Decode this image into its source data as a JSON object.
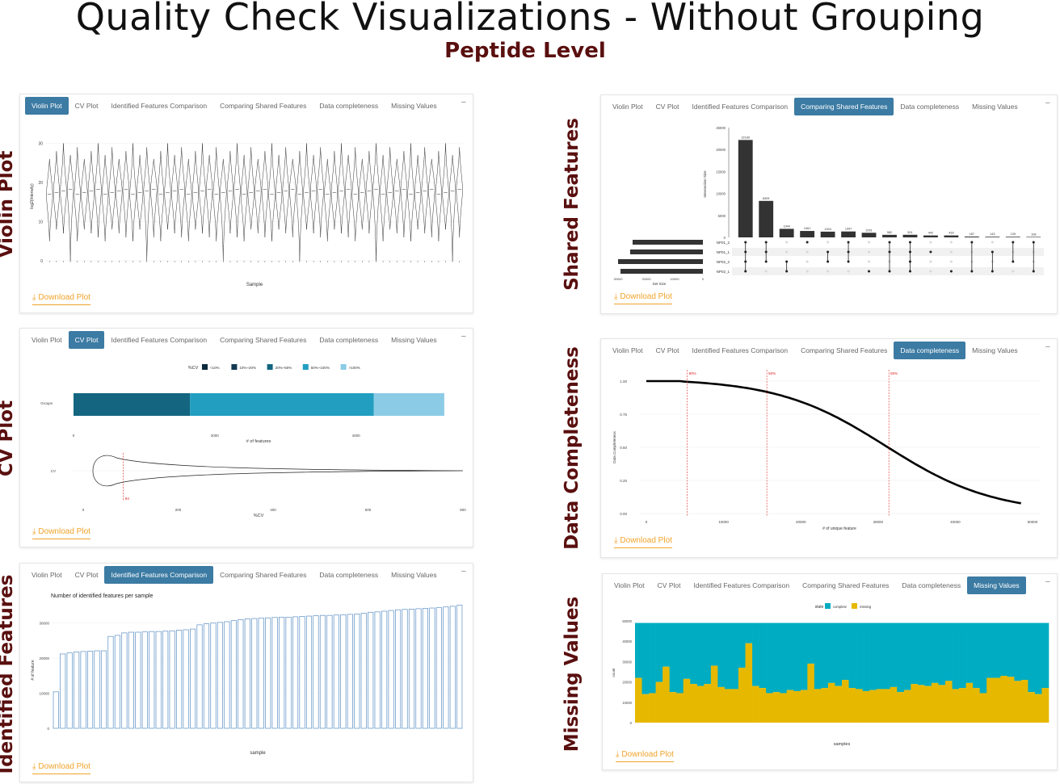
{
  "header": {
    "title": "Quality Check Visualizations - Without Grouping",
    "subtitle": "Peptide Level"
  },
  "side_labels": {
    "violin": "Violin Plot",
    "cv": "CV Plot",
    "identified": "Identified Features",
    "shared": "Shared Features",
    "completeness": "Data Completeness",
    "missing": "Missing Values"
  },
  "tabs": [
    "Violin Plot",
    "CV Plot",
    "Identified Features Comparison",
    "Comparing Shared Features",
    "Data completeness",
    "Missing Values"
  ],
  "collapse_glyph": "−",
  "download_label": "Download Plot",
  "download_icon": "download-icon",
  "colors": {
    "accent": "#3c7ba3",
    "download": "#f0a32a",
    "side_label": "#5a0f0f",
    "cv_bins": [
      "#0b2a3d",
      "#11384f",
      "#136580",
      "#219ec0",
      "#8ccbe6"
    ],
    "complete": "#00acc1",
    "missing": "#e6b800"
  },
  "violin": {
    "ylabel": "log2(Intensity)",
    "xlabel": "Sample",
    "yticks": [
      "0",
      "10",
      "20",
      "30"
    ],
    "sample_count": 60
  },
  "cv_plot": {
    "legend_title": "%CV",
    "legend_items": [
      "<10%",
      "10%~20%",
      "20%~50%",
      "50%~100%",
      ">100%"
    ],
    "bar_label": "Groups",
    "bar_segments": [
      {
        "label": "20%~50%",
        "value": 1650
      },
      {
        "label": "50%~100%",
        "value": 4250
      },
      {
        "label": ">100%",
        "value": 5250
      }
    ],
    "bar_xticks": [
      "0",
      "2000",
      "4000"
    ],
    "bar_xlabel": "# of features",
    "violin_label": "CV",
    "violin_xticks": [
      "0",
      "200",
      "400",
      "600",
      "800"
    ],
    "violin_xlabel": "%CV",
    "median_label": "84",
    "median_value": 84
  },
  "identified": {
    "title": "Number of identified features per sample",
    "ylabel": "# of feature",
    "xlabel": "sample",
    "yticks": [
      "0",
      "10000",
      "20000",
      "30000"
    ],
    "ymax": 35000,
    "values": [
      10400,
      21200,
      21500,
      21800,
      21900,
      22000,
      22100,
      22100,
      26200,
      26500,
      27200,
      27400,
      27400,
      27500,
      27600,
      27600,
      27700,
      27800,
      28000,
      28100,
      28300,
      29500,
      29800,
      30000,
      30200,
      30400,
      30700,
      31000,
      31200,
      31300,
      31400,
      31500,
      31600,
      31700,
      31700,
      31800,
      31900,
      32000,
      32100,
      32200,
      32200,
      32300,
      32400,
      32500,
      32600,
      32800,
      33100,
      33200,
      33400,
      33600,
      33800,
      33900,
      34000,
      34100,
      34200,
      34300,
      34400,
      34600,
      34800,
      35100
    ]
  },
  "shared": {
    "ylabel": "Intersection Size",
    "yticks": [
      "0",
      "5000",
      "10000",
      "15000",
      "20000",
      "25000"
    ],
    "ymax": 25000,
    "bars": [
      22180,
      8309,
      1944,
      1461,
      1304,
      1347,
      1051,
      582,
      591,
      442,
      439,
      187,
      143,
      139,
      108
    ],
    "bar_labels": [
      "22180",
      "8309",
      "1944",
      "1461",
      "1304",
      "1347",
      "1051",
      "582",
      "591",
      "442",
      "439",
      "187",
      "143",
      "139",
      "108"
    ],
    "sets": [
      "NP01_2",
      "NP01_1",
      "NP02_2",
      "NP02_1"
    ],
    "set_sizes": [
      29000,
      30000,
      35000,
      34000
    ],
    "set_xlabel": "Set Size",
    "set_xticks": [
      "30000",
      "20000",
      "10000",
      "0"
    ],
    "matrix": [
      [
        1,
        1,
        1,
        1
      ],
      [
        1,
        1,
        1,
        0
      ],
      [
        0,
        0,
        1,
        1
      ],
      [
        1,
        0,
        0,
        0
      ],
      [
        0,
        1,
        1,
        0
      ],
      [
        1,
        1,
        1,
        0
      ],
      [
        0,
        0,
        0,
        1
      ],
      [
        1,
        1,
        0,
        1
      ],
      [
        1,
        1,
        1,
        1
      ],
      [
        0,
        1,
        0,
        0
      ],
      [
        0,
        0,
        0,
        1
      ],
      [
        1,
        0,
        0,
        1
      ],
      [
        0,
        1,
        0,
        1
      ],
      [
        1,
        0,
        1,
        0
      ],
      [
        1,
        0,
        0,
        1
      ]
    ]
  },
  "completeness": {
    "ylabel": "Data Completeness",
    "xlabel": "# of unique feature",
    "yticks": [
      "0.00",
      "0.25",
      "0.50",
      "0.75",
      "1.00"
    ],
    "xticks": [
      "0",
      "10000",
      "20000",
      "30000",
      "40000",
      "50000"
    ],
    "xmax": 50000,
    "thresholds": [
      {
        "label": "90%",
        "x": 5300
      },
      {
        "label": "50%",
        "x": 15600
      },
      {
        "label": "50%",
        "x": 31400
      }
    ]
  },
  "missing": {
    "legend_title": "state",
    "legend_items": [
      "complete",
      "missing"
    ],
    "ylabel": "count",
    "xlabel": "samples",
    "yticks": [
      "0",
      "10000",
      "20000",
      "30000",
      "40000",
      "50000"
    ],
    "ymax": 50000,
    "total": 49000,
    "complete_values": [
      22000,
      14000,
      14500,
      20000,
      27500,
      15000,
      14500,
      21500,
      19000,
      18000,
      19000,
      28000,
      17500,
      16500,
      16500,
      27000,
      39000,
      18000,
      17000,
      14500,
      15000,
      14500,
      16000,
      15500,
      16000,
      29000,
      16500,
      17000,
      19500,
      18000,
      21000,
      17000,
      16500,
      15500,
      16000,
      16500,
      16500,
      17500,
      15000,
      16000,
      19000,
      18500,
      18000,
      19500,
      18500,
      20500,
      16500,
      17000,
      19500,
      17000,
      14500,
      22000,
      22000,
      23000,
      22500,
      20500,
      21000,
      15000,
      14000,
      17000
    ]
  }
}
